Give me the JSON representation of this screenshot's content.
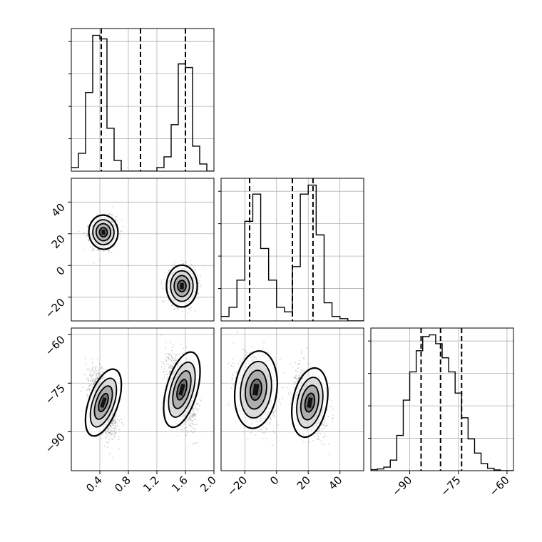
{
  "chart_data": {
    "type": "corner",
    "colors": {
      "line": "#000000",
      "grid": "#b0b0b0",
      "scatter": "#808080"
    },
    "grid": true,
    "variables": [
      {
        "range": [
          0.0,
          2.0
        ],
        "ticks": [
          "0.4",
          "0.8",
          "1.2",
          "1.6",
          "2.0"
        ],
        "tick_values": [
          0.4,
          0.8,
          1.2,
          1.6,
          2.0
        ],
        "quantiles": [
          0.42,
          0.97,
          1.6
        ],
        "hist_bins": [
          0.0,
          0.1,
          0.2,
          0.3,
          0.4,
          0.5,
          0.6,
          0.7,
          0.8,
          0.9,
          1.0,
          1.1,
          1.2,
          1.3,
          1.4,
          1.5,
          1.6,
          1.7,
          1.8,
          1.9,
          2.0
        ],
        "hist_values": [
          1,
          5,
          22,
          38,
          37,
          12,
          3,
          0,
          0,
          0,
          0,
          0,
          1,
          4,
          13,
          30,
          29,
          7,
          2,
          0
        ]
      },
      {
        "range": [
          -35,
          55
        ],
        "ticks": [
          "−20",
          "0",
          "20",
          "40"
        ],
        "tick_values": [
          -20,
          0,
          20,
          40
        ],
        "y_ticks": [
          "40",
          "20",
          "0",
          "−20"
        ],
        "quantiles": [
          -17,
          10,
          23
        ],
        "hist_bins": [
          -35,
          -30,
          -25,
          -20,
          -15,
          -10,
          -5,
          0,
          5,
          10,
          15,
          20,
          25,
          30,
          35,
          40,
          45,
          50,
          55
        ],
        "hist_values": [
          1,
          3,
          9,
          22,
          28,
          16,
          9,
          3,
          2,
          12,
          28,
          30,
          19,
          4,
          1,
          0.5,
          0,
          0
        ]
      },
      {
        "range": [
          -102,
          -58
        ],
        "ticks": [
          "−90",
          "−75",
          "−60"
        ],
        "tick_values": [
          -90,
          -75,
          -60
        ],
        "y_ticks": [
          "−60",
          "−75",
          "−90"
        ],
        "quantiles": [
          -86.5,
          -80.5,
          -74
        ],
        "hist_bins": [
          -102,
          -100,
          -98,
          -96,
          -94,
          -92,
          -90,
          -88,
          -86,
          -84,
          -82,
          -80,
          -78,
          -76,
          -74,
          -72,
          -70,
          -68,
          -66,
          -64,
          -62,
          -60,
          -58
        ],
        "hist_values": [
          0.3,
          0.5,
          1,
          3,
          10,
          20,
          28,
          34,
          38,
          38.5,
          36,
          32,
          28,
          22,
          15,
          9,
          5,
          2,
          0.7,
          0.2,
          0,
          0
        ]
      }
    ],
    "clusters": [
      {
        "center": [
          0.45,
          21,
          -81
        ],
        "spread": [
          0.085,
          4.5,
          4.5
        ],
        "corr": {
          "0-1": 0.1,
          "0-2": -0.55,
          "1-2": -0.3
        },
        "weight": 0.5
      },
      {
        "center": [
          1.55,
          -13,
          -77
        ],
        "spread": [
          0.09,
          5.5,
          5.0
        ],
        "corr": {
          "0-1": 0.0,
          "0-2": -0.45,
          "1-2": -0.2
        },
        "weight": 0.5
      }
    ]
  }
}
